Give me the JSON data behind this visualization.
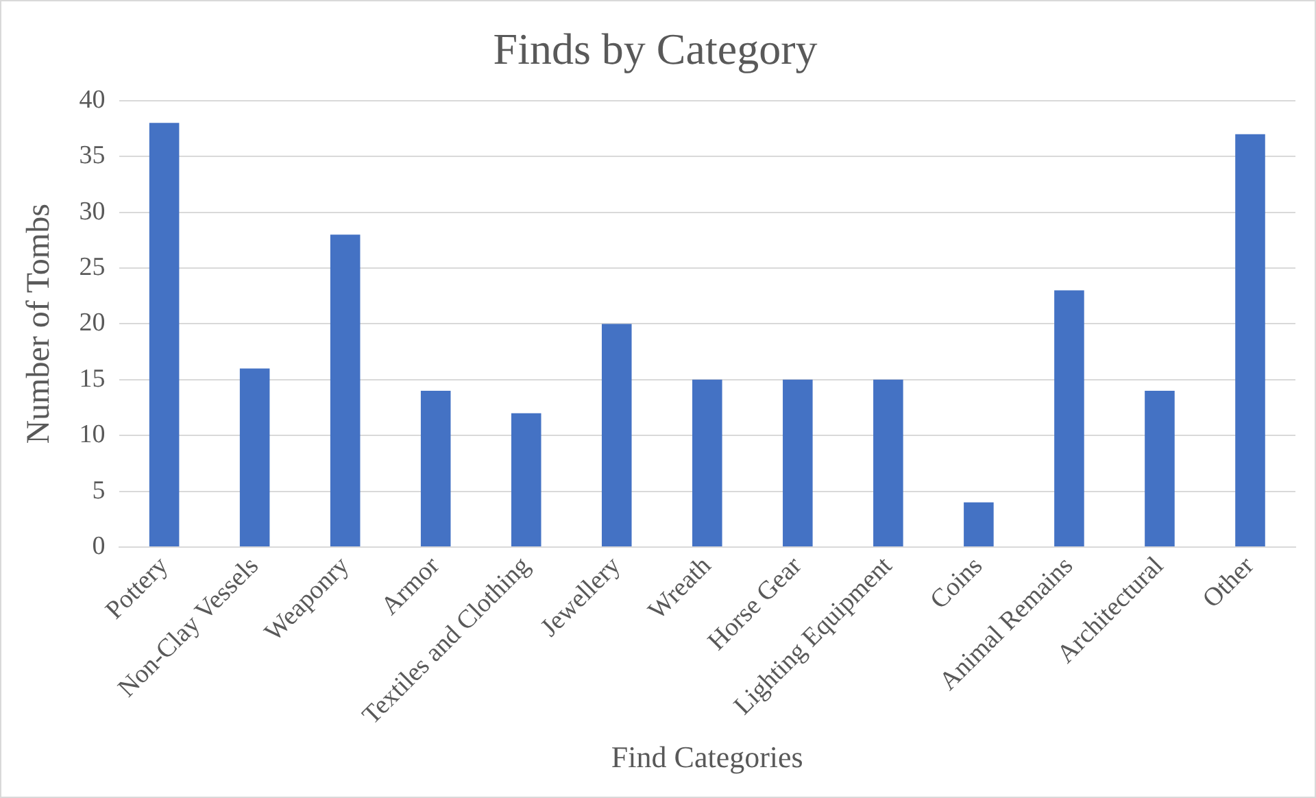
{
  "chart_data": {
    "type": "bar",
    "title": "Finds by Category",
    "xlabel": "Find Categories",
    "ylabel": "Number of Tombs",
    "categories": [
      "Pottery",
      "Non-Clay Vessels",
      "Weaponry",
      "Armor",
      "Textiles and Clothing",
      "Jewellery",
      "Wreath",
      "Horse Gear",
      "Lighting Equipment",
      "Coins",
      "Animal Remains",
      "Architectural",
      "Other"
    ],
    "values": [
      38,
      16,
      28,
      14,
      12,
      20,
      15,
      15,
      15,
      4,
      23,
      14,
      37
    ],
    "color": "#4472c4",
    "ylim": [
      0,
      40
    ],
    "yticks": [
      0,
      5,
      10,
      15,
      20,
      25,
      30,
      35,
      40
    ],
    "grid": "y",
    "legend": false
  }
}
